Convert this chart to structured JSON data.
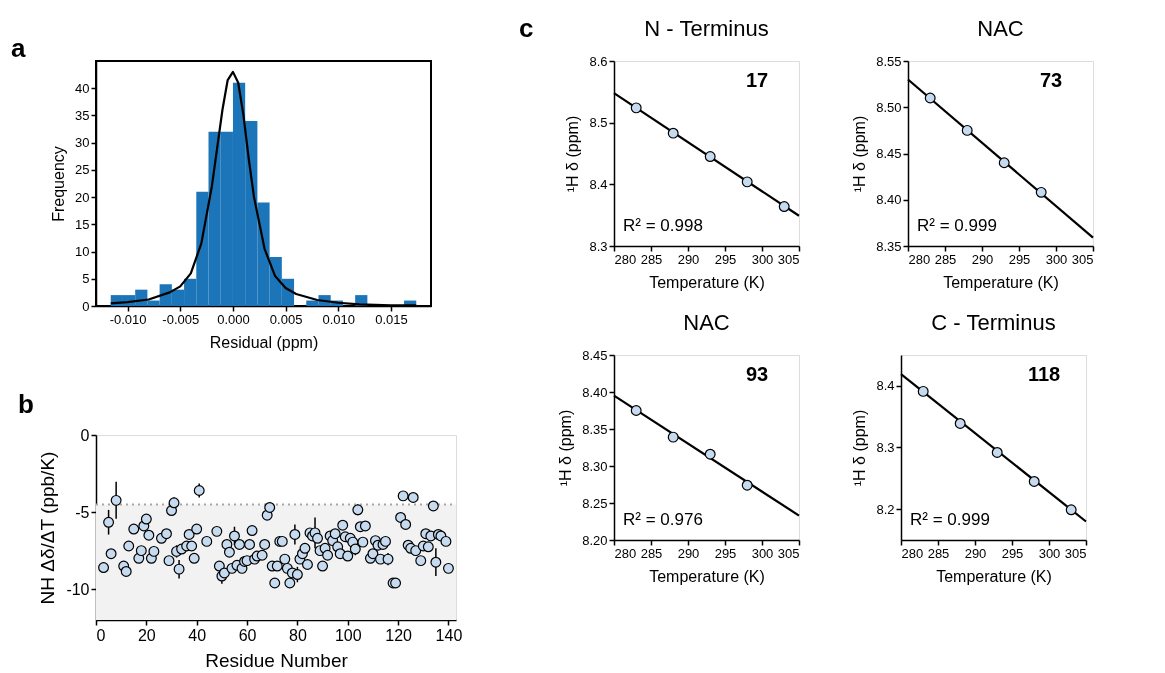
{
  "chart_data": [
    {
      "type": "histogram",
      "xlabel": "Residual (ppm)",
      "ylabel": "Frequency",
      "annotations": [
        "a"
      ],
      "color": "#1c75b8",
      "bins": [
        -0.0116,
        -0.01044,
        -0.00928,
        -0.00812,
        -0.00696,
        -0.0058,
        -0.00464,
        -0.00348,
        -0.00232,
        -0.00116,
        0,
        0.00116,
        0.00232,
        0.00348,
        0.00464,
        0.0058,
        0.00696,
        0.00812,
        0.00928,
        0.01044,
        0.0116,
        0.01276,
        0.01392,
        0.01508,
        0.01624,
        0.0174
      ],
      "values": [
        2,
        2,
        3,
        1,
        4,
        3,
        5,
        21,
        32,
        32,
        41,
        34,
        19,
        9,
        5,
        0,
        1,
        2,
        1,
        0,
        2,
        0,
        0,
        0,
        1
      ],
      "series": [
        {
          "type": "line",
          "color": "#000000",
          "x": [
            -0.0116,
            -0.01,
            -0.008,
            -0.006,
            -0.005,
            -0.004,
            -0.003,
            -0.002,
            -0.0015,
            -0.001,
            -0.0005,
            0,
            0.0005,
            0.001,
            0.0015,
            0.002,
            0.003,
            0.004,
            0.005,
            0.006,
            0.008,
            0.01,
            0.012,
            0.015,
            0.0174
          ],
          "values": [
            0.5,
            0.7,
            1.2,
            2.5,
            3.6,
            6,
            11.5,
            22,
            29,
            36,
            41.5,
            43,
            41,
            35,
            27,
            20,
            10.5,
            5.5,
            3.3,
            2.2,
            1.1,
            0.6,
            0.3,
            0.1,
            0.1
          ]
        }
      ],
      "xlim": [
        -0.013,
        0.0188
      ],
      "ylim": [
        0,
        45
      ],
      "xticks": [
        {
          "value": -0.01,
          "label": "-0.010"
        },
        {
          "value": -0.005,
          "label": "-0.005"
        },
        {
          "value": 0,
          "label": "0.000"
        },
        {
          "value": 0.005,
          "label": "0.005"
        },
        {
          "value": 0.01,
          "label": "0.010"
        },
        {
          "value": 0.015,
          "label": "0.015"
        }
      ],
      "yticks": [
        0,
        5,
        10,
        15,
        20,
        25,
        30,
        35,
        40
      ]
    },
    {
      "type": "scatter",
      "xlabel": "Residue Number",
      "ylabel": "NH Δδ/ΔT (ppb/K)",
      "annotations": [
        "b"
      ],
      "marker": "circle",
      "x": [
        3,
        5,
        6,
        8,
        11,
        12,
        13,
        15,
        17,
        18,
        19,
        20,
        21,
        22,
        23,
        26,
        28,
        29,
        30,
        31,
        32,
        33,
        34,
        36,
        37,
        38,
        39,
        40,
        41,
        44,
        48,
        49,
        50,
        51,
        52,
        53,
        54,
        55,
        56,
        57,
        58,
        59,
        60,
        61,
        62,
        63,
        64,
        66,
        67,
        68,
        69,
        70,
        71,
        72,
        73,
        74,
        75,
        76,
        77,
        78,
        79,
        80,
        81,
        82,
        83,
        84,
        85,
        86,
        87,
        88,
        89,
        90,
        91,
        92,
        93,
        94,
        95,
        96,
        97,
        98,
        99,
        100,
        101,
        102,
        103,
        104,
        105,
        106,
        107,
        109,
        110,
        111,
        112,
        113,
        114,
        115,
        116,
        118,
        119,
        121,
        122,
        123,
        124,
        125,
        126,
        127,
        129,
        130,
        131,
        132,
        133,
        134,
        135,
        136,
        137,
        139,
        140
      ],
      "series": [
        {
          "color": "#c6dbef",
          "values": [
            -8.6,
            -5.66,
            -7.7,
            -4.24,
            -8.5,
            -8.85,
            -7.2,
            -6.1,
            -8.0,
            -7.5,
            -5.9,
            -5.45,
            -6.5,
            -8.0,
            -7.55,
            -6.7,
            -6.4,
            -8.15,
            -4.9,
            -4.4,
            -7.55,
            -8.7,
            -7.4,
            -7.2,
            -6.45,
            -7.2,
            -8.0,
            -6.1,
            -3.6,
            -6.9,
            -6.25,
            -8.5,
            -9.15,
            -8.95,
            -7.1,
            -7.6,
            -8.65,
            -6.55,
            -8.45,
            -7.1,
            -8.65,
            -8.2,
            -8.15,
            -7.1,
            -6.2,
            -8.05,
            -7.85,
            -7.8,
            -7.1,
            -5.2,
            -4.7,
            -8.5,
            -9.6,
            -8.5,
            -6.9,
            -6.9,
            -8.05,
            -8.65,
            -9.6,
            -8.95,
            -6.45,
            -9.05,
            -8.05,
            -7.7,
            -7.35,
            -8.4,
            -6.35,
            -6.55,
            -6.35,
            -6.7,
            -7.5,
            -8.5,
            -7.35,
            -7.8,
            -6.55,
            -6.85,
            -6.4,
            -7.25,
            -7.7,
            -5.85,
            -6.6,
            -7.85,
            -6.7,
            -6.95,
            -7.4,
            -4.85,
            -5.95,
            -6.95,
            -5.9,
            -8.0,
            -7.7,
            -6.85,
            -7.15,
            -8.05,
            -7.1,
            -6.9,
            -8.05,
            -9.6,
            -9.6,
            -5.35,
            -3.95,
            -5.8,
            -7.15,
            -7.35,
            -4.05,
            -7.5,
            -8.15,
            -7.2,
            -6.4,
            -7.25,
            -6.55,
            -4.6,
            -8.25,
            -6.45,
            -6.55,
            -6.9,
            -8.65
          ],
          "errors": [
            null,
            0.8,
            null,
            1.2,
            null,
            null,
            null,
            null,
            null,
            null,
            null,
            null,
            null,
            null,
            null,
            null,
            null,
            null,
            null,
            0.35,
            0.4,
            0.6,
            null,
            null,
            null,
            null,
            null,
            null,
            0.45,
            null,
            null,
            null,
            0.5,
            null,
            null,
            null,
            null,
            0.6,
            null,
            null,
            null,
            null,
            null,
            null,
            null,
            null,
            null,
            null,
            null,
            null,
            0.35,
            null,
            null,
            null,
            null,
            null,
            null,
            null,
            null,
            null,
            0.65,
            0.5,
            null,
            null,
            null,
            null,
            null,
            null,
            1.0,
            null,
            null,
            null,
            null,
            null,
            0.3,
            null,
            null,
            null,
            null,
            null,
            null,
            null,
            null,
            null,
            0.4,
            0.35,
            null,
            null,
            null,
            null,
            null,
            null,
            null,
            null,
            null,
            null,
            0.4,
            null,
            null,
            null,
            null,
            null,
            null,
            null,
            null,
            null,
            null,
            null,
            null,
            null,
            null,
            null,
            0.9,
            null,
            null,
            null,
            null
          ]
        }
      ],
      "ref_lines": [
        {
          "axis": "y",
          "value": -4.5,
          "line_style": "dotted",
          "color": "#a6a6a6"
        }
      ],
      "bands": [
        {
          "axis": "y",
          "from": -12,
          "to": -4.5,
          "color": "#f2f2f2"
        }
      ],
      "xlim": [
        0,
        143
      ],
      "ylim": [
        -12,
        0
      ],
      "xticks": [
        0,
        20,
        40,
        60,
        80,
        100,
        120,
        140
      ],
      "yticks": [
        0,
        -5,
        -10
      ]
    },
    {
      "type": "scatter",
      "title": "N - Terminus",
      "xlabel": "Temperature (K)",
      "ylabel": "¹H δ (ppm)",
      "annotations": [
        "c",
        "17",
        "R² = 0.998"
      ],
      "series": [
        {
          "type": "line",
          "color": "#000000",
          "x": [
            280,
            305
          ],
          "values": [
            8.548,
            8.349
          ]
        },
        {
          "type": "scatter",
          "marker": "circle",
          "color": "#c6dbef",
          "x": [
            283,
            288,
            293,
            298,
            303
          ],
          "values": [
            8.524,
            8.483,
            8.445,
            8.404,
            8.364
          ]
        }
      ],
      "xlim": [
        280,
        305
      ],
      "ylim": [
        8.3,
        8.6
      ],
      "xticks": [
        280,
        285,
        290,
        295,
        300,
        305
      ],
      "yticks": [
        8.3,
        8.4,
        8.5,
        8.6
      ]
    },
    {
      "type": "scatter",
      "title": "NAC",
      "xlabel": "Temperature (K)",
      "ylabel": "¹H δ (ppm)",
      "annotations": [
        "73",
        "R² = 0.999"
      ],
      "series": [
        {
          "type": "line",
          "color": "#000000",
          "x": [
            280,
            305
          ],
          "values": [
            8.53,
            8.359
          ]
        },
        {
          "type": "scatter",
          "marker": "circle",
          "color": "#c6dbef",
          "x": [
            283,
            288,
            293,
            298
          ],
          "values": [
            8.51,
            8.475,
            8.44,
            8.408
          ]
        }
      ],
      "xlim": [
        280,
        305
      ],
      "ylim": [
        8.35,
        8.55
      ],
      "xticks": [
        280,
        285,
        290,
        295,
        300,
        305
      ],
      "yticks": [
        8.35,
        {
          "value": 8.4,
          "label": "8.40"
        },
        8.45,
        {
          "value": 8.5,
          "label": "8.50"
        },
        8.55
      ]
    },
    {
      "type": "scatter",
      "title": "NAC",
      "xlabel": "Temperature (K)",
      "ylabel": "¹H δ (ppm)",
      "annotations": [
        "93",
        "R² = 0.976"
      ],
      "series": [
        {
          "type": "line",
          "color": "#000000",
          "x": [
            280,
            305
          ],
          "values": [
            8.395,
            8.233
          ]
        },
        {
          "type": "scatter",
          "marker": "circle",
          "color": "#c6dbef",
          "x": [
            283,
            288,
            293,
            298
          ],
          "values": [
            8.375,
            8.339,
            8.316,
            8.274
          ]
        }
      ],
      "xlim": [
        280,
        305
      ],
      "ylim": [
        8.2,
        8.45
      ],
      "xticks": [
        280,
        285,
        290,
        295,
        300,
        305
      ],
      "yticks": [
        {
          "value": 8.2,
          "label": "8.20"
        },
        8.25,
        {
          "value": 8.3,
          "label": "8.30"
        },
        8.35,
        {
          "value": 8.4,
          "label": "8.40"
        },
        8.45
      ]
    },
    {
      "type": "scatter",
      "title": "C - Terminus",
      "xlabel": "Temperature (K)",
      "ylabel": "¹H δ (ppm)",
      "annotations": [
        "118",
        "R² = 0.999"
      ],
      "series": [
        {
          "type": "line",
          "color": "#000000",
          "x": [
            280,
            305
          ],
          "values": [
            8.419,
            8.18
          ]
        },
        {
          "type": "scatter",
          "marker": "circle",
          "color": "#c6dbef",
          "x": [
            283,
            288,
            293,
            298,
            303
          ],
          "values": [
            8.391,
            8.339,
            8.292,
            8.245,
            8.199
          ]
        }
      ],
      "xlim": [
        280,
        305
      ],
      "ylim": [
        8.15,
        8.45
      ],
      "xticks": [
        280,
        285,
        290,
        295,
        300,
        305
      ],
      "yticks": [
        8.2,
        8.3,
        8.4
      ]
    }
  ]
}
